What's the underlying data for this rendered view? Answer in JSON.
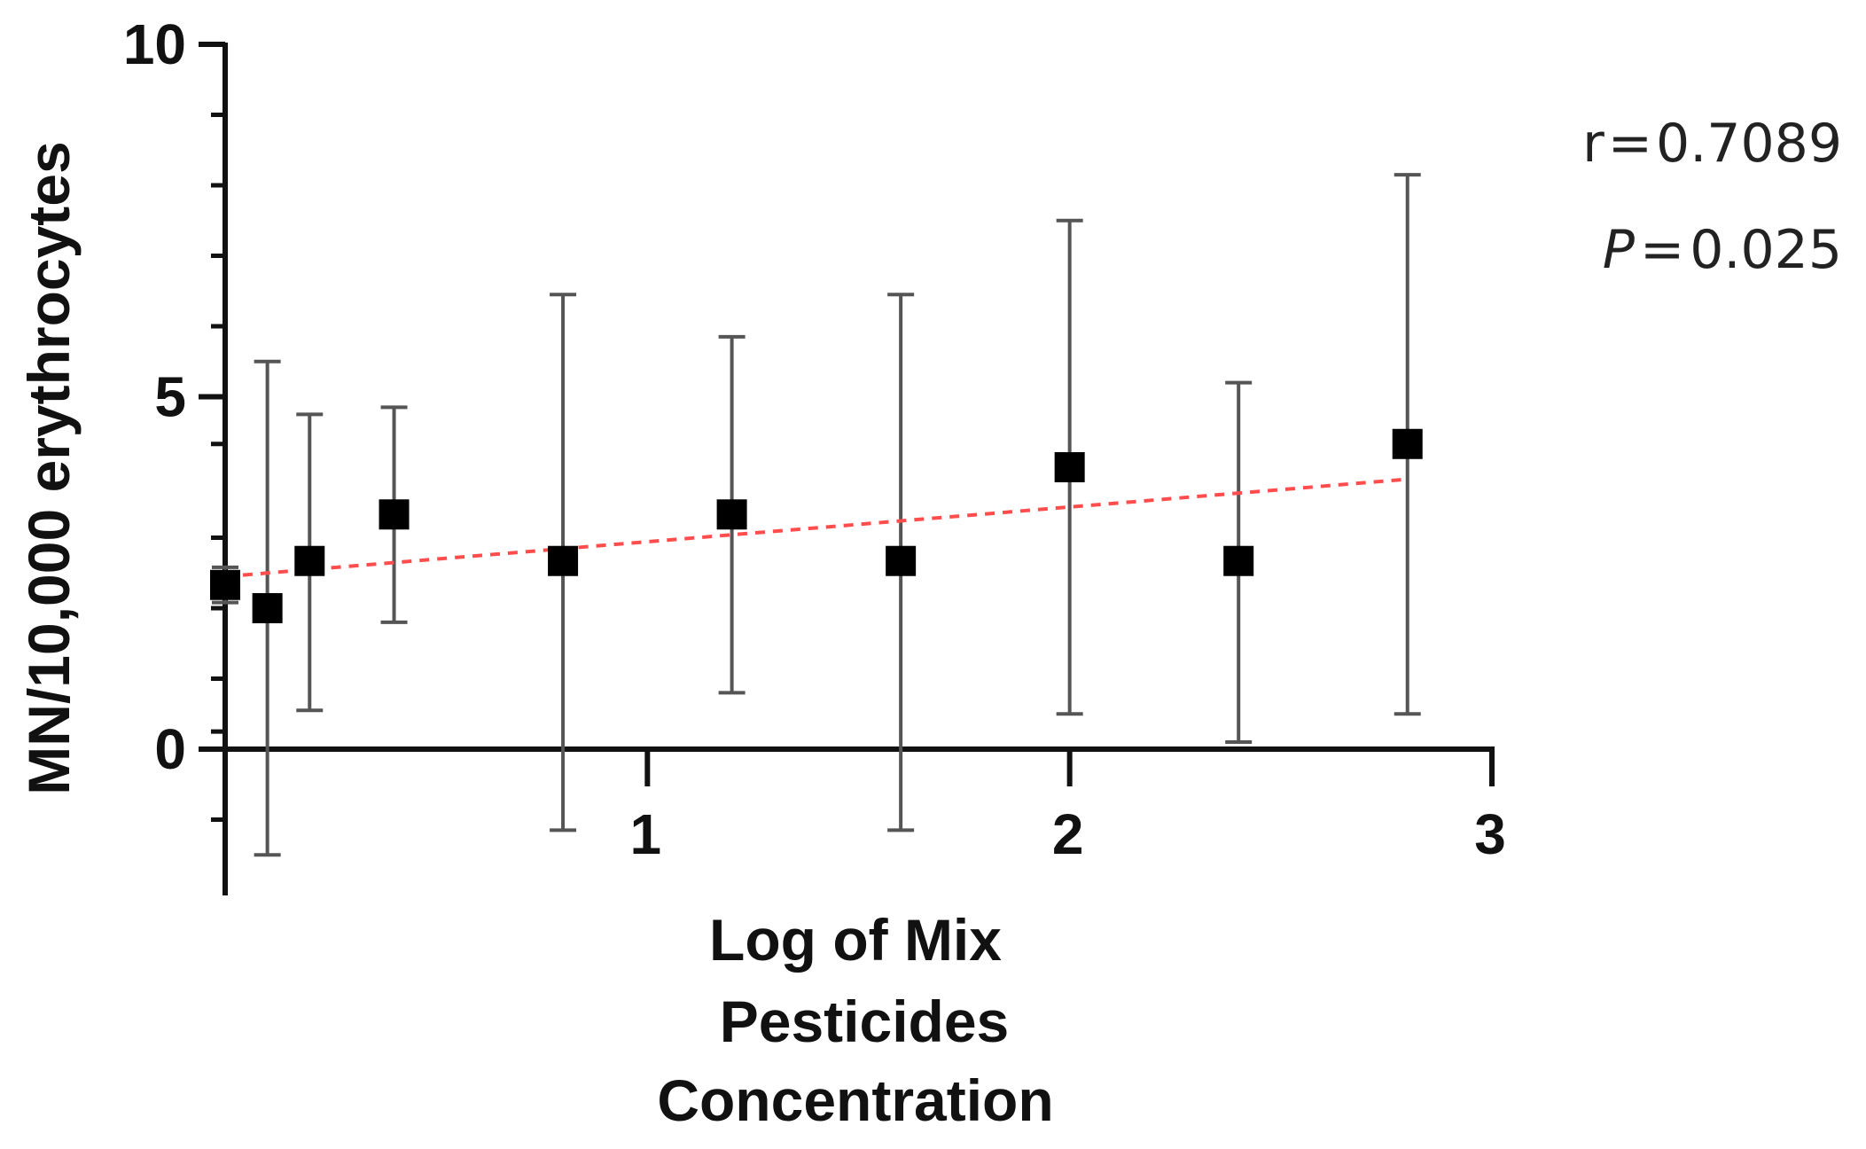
{
  "chart_data": {
    "type": "scatter",
    "xlabel_lines": [
      "Log of Mix",
      "Pesticides",
      "Concentration"
    ],
    "ylabel": "MN/10,000 erythrocytes",
    "xlim": [
      0,
      3
    ],
    "ylim": [
      -2,
      10
    ],
    "x_ticks": [
      "1",
      "2",
      "3"
    ],
    "x_tick_values": [
      1,
      2,
      3
    ],
    "y_ticks": [
      "0",
      "5",
      "10"
    ],
    "y_tick_values": [
      0,
      5,
      10
    ],
    "y_minor_ticks": [
      -1,
      0.25,
      1,
      2,
      3,
      4.33,
      6,
      7,
      8,
      9
    ],
    "points": [
      {
        "x": 0.0,
        "y": 2.33,
        "err_low": 2.08,
        "err_high": 2.58
      },
      {
        "x": 0.1,
        "y": 2.0,
        "err_low": -1.5,
        "err_high": 5.5
      },
      {
        "x": 0.2,
        "y": 2.67,
        "err_low": 0.55,
        "err_high": 4.75
      },
      {
        "x": 0.4,
        "y": 3.33,
        "err_low": 1.8,
        "err_high": 4.85
      },
      {
        "x": 0.8,
        "y": 2.67,
        "err_low": -1.15,
        "err_high": 6.45
      },
      {
        "x": 1.2,
        "y": 3.33,
        "err_low": 0.8,
        "err_high": 5.85
      },
      {
        "x": 1.6,
        "y": 2.67,
        "err_low": -1.15,
        "err_high": 6.45
      },
      {
        "x": 2.0,
        "y": 4.0,
        "err_low": 0.5,
        "err_high": 7.5
      },
      {
        "x": 2.4,
        "y": 2.67,
        "err_low": 0.1,
        "err_high": 5.2
      },
      {
        "x": 2.8,
        "y": 4.33,
        "err_low": 0.5,
        "err_high": 8.15
      }
    ],
    "trendline": {
      "x": [
        0.0,
        2.8
      ],
      "y": [
        2.45,
        3.83
      ],
      "color": "#ff4d4d",
      "style": "dashed"
    },
    "marker_color": "#000000",
    "errorbar_color": "#555555",
    "axis_color": "#111111",
    "grid": false,
    "legend": "none"
  },
  "stats": {
    "r_label": "r",
    "r_value": "0.7089",
    "p_label": "P",
    "p_value": "0.025",
    "eq": "="
  }
}
